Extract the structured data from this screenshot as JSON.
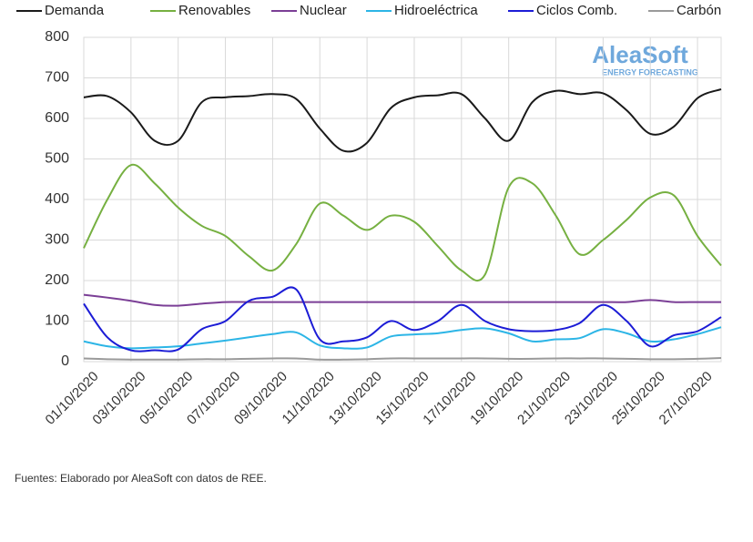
{
  "chart_data": {
    "type": "line",
    "categories": [
      "01/10/2020",
      null,
      "03/10/2020",
      null,
      "05/10/2020",
      null,
      "07/10/2020",
      null,
      "09/10/2020",
      null,
      "11/10/2020",
      null,
      "13/10/2020",
      null,
      "15/10/2020",
      null,
      "17/10/2020",
      null,
      "19/10/2020",
      null,
      "21/10/2020",
      null,
      "23/10/2020",
      null,
      "25/10/2020",
      null,
      "27/10/2020",
      null
    ],
    "series": [
      {
        "name": "Demanda",
        "color": "#1a1a1a",
        "values": [
          652,
          655,
          615,
          545,
          545,
          640,
          652,
          655,
          660,
          648,
          575,
          520,
          540,
          625,
          652,
          657,
          660,
          600,
          545,
          640,
          668,
          660,
          662,
          620,
          562,
          580,
          650,
          672
        ]
      },
      {
        "name": "Renovables",
        "color": "#76b041",
        "values": [
          280,
          400,
          485,
          440,
          380,
          335,
          310,
          260,
          225,
          290,
          390,
          360,
          325,
          360,
          345,
          285,
          225,
          215,
          430,
          440,
          360,
          265,
          300,
          350,
          405,
          410,
          310,
          237
        ]
      },
      {
        "name": "Nuclear",
        "color": "#7b3f96",
        "values": [
          165,
          158,
          150,
          140,
          138,
          143,
          147,
          147,
          147,
          147,
          147,
          147,
          147,
          147,
          147,
          147,
          147,
          147,
          147,
          147,
          147,
          147,
          147,
          147,
          152,
          147,
          147,
          147
        ]
      },
      {
        "name": "Hidroeléctrica",
        "color": "#2cb5e6",
        "values": [
          50,
          38,
          33,
          35,
          38,
          45,
          52,
          60,
          68,
          72,
          40,
          33,
          35,
          62,
          67,
          70,
          78,
          82,
          70,
          50,
          55,
          58,
          80,
          70,
          50,
          55,
          68,
          85
        ]
      },
      {
        "name": "Ciclos Comb.",
        "color": "#1c1cd6",
        "values": [
          143,
          60,
          28,
          28,
          30,
          80,
          100,
          150,
          160,
          178,
          55,
          50,
          60,
          100,
          78,
          100,
          140,
          100,
          80,
          75,
          78,
          95,
          140,
          100,
          38,
          65,
          75,
          110
        ]
      },
      {
        "name": "Carbón",
        "color": "#9a9a9a",
        "values": [
          8,
          6,
          5,
          5,
          5,
          6,
          6,
          7,
          8,
          8,
          5,
          5,
          6,
          8,
          8,
          8,
          8,
          8,
          7,
          7,
          8,
          8,
          8,
          7,
          6,
          6,
          7,
          9
        ]
      }
    ],
    "ylim": [
      0,
      800
    ],
    "yticks": [
      0,
      100,
      200,
      300,
      400,
      500,
      600,
      700,
      800
    ],
    "grid": true,
    "legend": "top",
    "logo": {
      "name": "AleaSoft",
      "tagline": "ENERGY FORECASTING"
    }
  },
  "source": "Fuentes: Elaborado por AleaSoft con datos de REE."
}
